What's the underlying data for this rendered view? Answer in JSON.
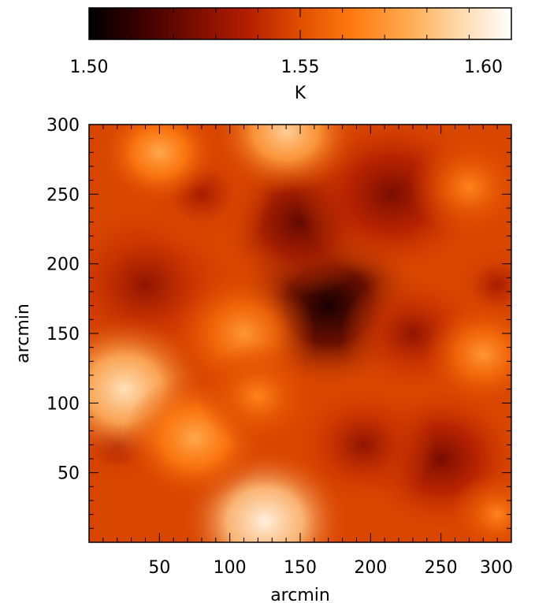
{
  "chart_data": {
    "type": "heatmap",
    "colorbar": {
      "label": "K",
      "range": [
        1.5,
        1.6
      ],
      "tick_labels": [
        "1.50",
        "1.55",
        "1.60"
      ],
      "tick_values": [
        1.5,
        1.55,
        1.6
      ],
      "colormap": "red-temperature",
      "colors": [
        "#000000",
        "#3d0000",
        "#7a0d00",
        "#b41e00",
        "#e04e00",
        "#ff7a10",
        "#ffa84c",
        "#ffd8a8",
        "#ffffff"
      ]
    },
    "xlabel": "arcmin",
    "ylabel": "arcmin",
    "xlim": [
      0,
      300
    ],
    "ylim": [
      0,
      300
    ],
    "x_ticks": [
      50,
      100,
      150,
      200,
      250,
      300
    ],
    "x_tick_labels": [
      "50",
      "100",
      "150",
      "200",
      "250",
      "300"
    ],
    "y_ticks": [
      50,
      100,
      150,
      200,
      250,
      300
    ],
    "y_tick_labels": [
      "50",
      "100",
      "150",
      "200",
      "250",
      "300"
    ],
    "features": {
      "cold_regions": [
        {
          "x": 170,
          "y": 170,
          "value": 1.505,
          "radius": 40
        },
        {
          "x": 150,
          "y": 230,
          "value": 1.52,
          "radius": 35
        },
        {
          "x": 215,
          "y": 250,
          "value": 1.525,
          "radius": 40
        },
        {
          "x": 40,
          "y": 185,
          "value": 1.53,
          "radius": 40
        },
        {
          "x": 250,
          "y": 60,
          "value": 1.525,
          "radius": 35
        },
        {
          "x": 195,
          "y": 70,
          "value": 1.53,
          "radius": 30
        },
        {
          "x": 80,
          "y": 250,
          "value": 1.535,
          "radius": 30
        },
        {
          "x": 20,
          "y": 70,
          "value": 1.535,
          "radius": 25
        },
        {
          "x": 290,
          "y": 185,
          "value": 1.535,
          "radius": 25
        },
        {
          "x": 230,
          "y": 150,
          "value": 1.53,
          "radius": 30
        }
      ],
      "warm_regions": [
        {
          "x": 125,
          "y": 15,
          "value": 1.595,
          "radius": 35
        },
        {
          "x": 25,
          "y": 110,
          "value": 1.59,
          "radius": 35
        },
        {
          "x": 75,
          "y": 75,
          "value": 1.575,
          "radius": 30
        },
        {
          "x": 140,
          "y": 295,
          "value": 1.585,
          "radius": 30
        },
        {
          "x": 50,
          "y": 280,
          "value": 1.575,
          "radius": 25
        },
        {
          "x": 280,
          "y": 135,
          "value": 1.57,
          "radius": 25
        },
        {
          "x": 110,
          "y": 150,
          "value": 1.57,
          "radius": 30
        },
        {
          "x": 270,
          "y": 255,
          "value": 1.565,
          "radius": 25
        },
        {
          "x": 120,
          "y": 105,
          "value": 1.565,
          "radius": 25
        },
        {
          "x": 290,
          "y": 20,
          "value": 1.565,
          "radius": 20
        }
      ]
    }
  }
}
